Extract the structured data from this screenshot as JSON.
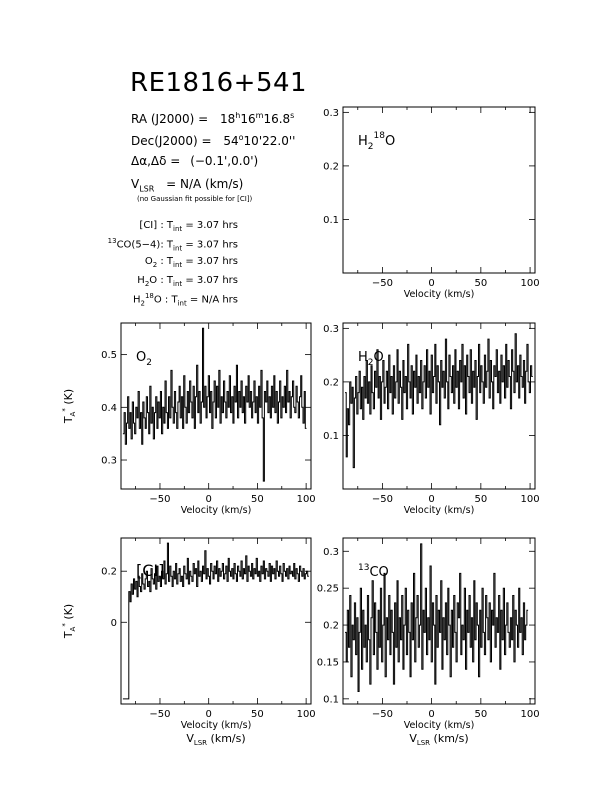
{
  "title": "RE1816+541",
  "info": {
    "ra_label": "RA (J2000)  =",
    "ra_value": {
      "h": "18",
      "m": "16",
      "s": "16.8"
    },
    "dec_label": "Dec(J2000)  =",
    "dec_value": {
      "d": "54",
      "rest": "10'22.0''"
    },
    "offset_label": "Δα,Δδ  =",
    "offset_value": "(−0.1',0.0')",
    "vlsr_label": "V",
    "vlsr_sub": "LSR",
    "vlsr_value": "=  N/A  (km/s)",
    "note": "(no Gaussian fit possible for [CI])"
  },
  "integration_times": [
    {
      "line": "[CI]",
      "sup": "",
      "sub": "",
      "value": "3.07 hrs"
    },
    {
      "line": "CO(5−4)",
      "sup": "13",
      "sub": "",
      "value": "3.07 hrs"
    },
    {
      "line": "O",
      "sup": "",
      "sub": "2",
      "value": "3.07 hrs"
    },
    {
      "line": "H",
      "sup": "",
      "sub": "2",
      "line_rest": "O",
      "value": "3.07 hrs"
    },
    {
      "line": "H",
      "sup": "18",
      "sub": "2",
      "line_rest": "O",
      "value": "N/A hrs"
    }
  ],
  "tint_label": "T",
  "tint_sub": "int",
  "axis_labels": {
    "velocity": "Velocity (km/s)",
    "vlsr": "V",
    "vlsr_sub": "LSR",
    "vlsr_units": "(km/s)",
    "ta": "T",
    "ta_sub": "A",
    "ta_sup": "*",
    "ta_units": "(K)"
  },
  "chart_data": [
    {
      "id": "h2_18o",
      "type": "line",
      "label_parts": [
        "H",
        "2",
        "18",
        "O"
      ],
      "xlim": [
        -90,
        105
      ],
      "ylim": [
        0.0,
        0.31
      ],
      "xticks": [
        -50,
        0,
        50,
        100
      ],
      "yticks": [
        0.1,
        0.2,
        0.3
      ],
      "ytick_labels": [
        "0.1",
        "0.2",
        "0.3"
      ],
      "series": []
    },
    {
      "id": "o2",
      "type": "line",
      "label_parts": [
        "O",
        "2"
      ],
      "xlim": [
        -90,
        105
      ],
      "ylim": [
        0.245,
        0.56
      ],
      "xticks": [
        -50,
        0,
        50,
        100
      ],
      "yticks": [
        0.3,
        0.4,
        0.5
      ],
      "ytick_labels": [
        "0.3",
        "0.4",
        "0.5"
      ],
      "series": [
        {
          "x_start": -88,
          "x_step": 1.2,
          "y": [
            0.35,
            0.39,
            0.33,
            0.37,
            0.42,
            0.36,
            0.39,
            0.34,
            0.41,
            0.37,
            0.35,
            0.4,
            0.38,
            0.43,
            0.36,
            0.39,
            0.33,
            0.41,
            0.38,
            0.36,
            0.42,
            0.39,
            0.35,
            0.44,
            0.37,
            0.4,
            0.34,
            0.39,
            0.42,
            0.36,
            0.41,
            0.38,
            0.43,
            0.35,
            0.4,
            0.37,
            0.45,
            0.39,
            0.36,
            0.42,
            0.38,
            0.47,
            0.4,
            0.37,
            0.43,
            0.39,
            0.36,
            0.41,
            0.44,
            0.38,
            0.42,
            0.36,
            0.46,
            0.4,
            0.37,
            0.43,
            0.39,
            0.45,
            0.41,
            0.38,
            0.44,
            0.36,
            0.42,
            0.48,
            0.39,
            0.43,
            0.37,
            0.41,
            0.55,
            0.4,
            0.44,
            0.38,
            0.42,
            0.46,
            0.39,
            0.43,
            0.36,
            0.41,
            0.45,
            0.38,
            0.44,
            0.4,
            0.47,
            0.37,
            0.42,
            0.39,
            0.45,
            0.41,
            0.38,
            0.43,
            0.4,
            0.46,
            0.39,
            0.42,
            0.37,
            0.44,
            0.41,
            0.48,
            0.38,
            0.43,
            0.4,
            0.45,
            0.39,
            0.42,
            0.37,
            0.44,
            0.41,
            0.46,
            0.4,
            0.43,
            0.38,
            0.41,
            0.45,
            0.39,
            0.42,
            0.37,
            0.44,
            0.4,
            0.47,
            0.38,
            0.26,
            0.43,
            0.41,
            0.45,
            0.39,
            0.42,
            0.38,
            0.44,
            0.4,
            0.46,
            0.39,
            0.43,
            0.37,
            0.41,
            0.45,
            0.38,
            0.42,
            0.4,
            0.44,
            0.39,
            0.47,
            0.41,
            0.43,
            0.38,
            0.42,
            0.45,
            0.4,
            0.39,
            0.44,
            0.41,
            0.38,
            0.42,
            0.46,
            0.4,
            0.37,
            0.43,
            0.36
          ]
        }
      ]
    },
    {
      "id": "h2o",
      "type": "line",
      "label_parts": [
        "H",
        "2",
        "",
        "O"
      ],
      "xlim": [
        -90,
        105
      ],
      "ylim": [
        0.0,
        0.31
      ],
      "xticks": [
        -50,
        0,
        50,
        100
      ],
      "yticks": [
        0.1,
        0.2,
        0.3
      ],
      "ytick_labels": [
        "0.1",
        "0.2",
        "0.3"
      ],
      "series": [
        {
          "x_start": -88,
          "x_step": 1.2,
          "y": [
            0.18,
            0.06,
            0.15,
            0.12,
            0.2,
            0.16,
            0.19,
            0.04,
            0.17,
            0.21,
            0.14,
            0.18,
            0.22,
            0.15,
            0.19,
            0.13,
            0.21,
            0.17,
            0.24,
            0.16,
            0.2,
            0.14,
            0.23,
            0.18,
            0.15,
            0.22,
            0.19,
            0.26,
            0.17,
            0.21,
            0.13,
            0.2,
            0.24,
            0.16,
            0.19,
            0.22,
            0.15,
            0.25,
            0.18,
            0.21,
            0.14,
            0.23,
            0.17,
            0.2,
            0.26,
            0.16,
            0.22,
            0.19,
            0.13,
            0.24,
            0.18,
            0.21,
            0.15,
            0.27,
            0.2,
            0.17,
            0.23,
            0.14,
            0.22,
            0.19,
            0.25,
            0.16,
            0.21,
            0.18,
            0.24,
            0.15,
            0.2,
            0.23,
            0.17,
            0.26,
            0.19,
            0.22,
            0.14,
            0.25,
            0.18,
            0.21,
            0.27,
            0.16,
            0.23,
            0.2,
            0.12,
            0.24,
            0.19,
            0.22,
            0.17,
            0.28,
            0.2,
            0.15,
            0.25,
            0.21,
            0.18,
            0.23,
            0.16,
            0.26,
            0.19,
            0.22,
            0.15,
            0.24,
            0.2,
            0.27,
            0.17,
            0.23,
            0.14,
            0.25,
            0.21,
            0.18,
            0.26,
            0.16,
            0.22,
            0.19,
            0.24,
            0.13,
            0.21,
            0.27,
            0.18,
            0.23,
            0.2,
            0.16,
            0.25,
            0.19,
            0.22,
            0.28,
            0.17,
            0.24,
            0.2,
            0.15,
            0.23,
            0.21,
            0.26,
            0.18,
            0.22,
            0.16,
            0.25,
            0.2,
            0.23,
            0.17,
            0.27,
            0.19,
            0.24,
            0.21,
            0.15,
            0.26,
            0.22,
            0.18,
            0.29,
            0.2,
            0.23,
            0.17,
            0.25,
            0.21,
            0.19,
            0.24,
            0.16,
            0.22,
            0.27,
            0.2,
            0.18,
            0.23,
            0.21
          ]
        }
      ]
    },
    {
      "id": "ci",
      "type": "line",
      "label_parts": [
        "[CI]"
      ],
      "xlim": [
        -90,
        105
      ],
      "ylim": [
        -0.32,
        0.33
      ],
      "xticks": [
        -50,
        0,
        50,
        100
      ],
      "yticks": [
        0.0,
        0.2
      ],
      "ytick_labels": [
        "0",
        "0.2"
      ],
      "series": [
        {
          "x_start": -88,
          "x_step": 1.2,
          "y": [
            -0.3,
            -0.3,
            -0.3,
            -0.3,
            -0.3,
            0.12,
            0.08,
            0.15,
            0.11,
            0.17,
            0.13,
            0.16,
            0.1,
            0.18,
            0.14,
            0.12,
            0.19,
            0.15,
            0.13,
            0.17,
            0.2,
            0.14,
            0.16,
            0.12,
            0.21,
            0.17,
            0.15,
            0.19,
            0.13,
            0.22,
            0.16,
            0.18,
            0.14,
            0.2,
            0.17,
            0.24,
            0.15,
            0.19,
            0.31,
            0.16,
            0.22,
            0.18,
            0.14,
            0.2,
            0.17,
            0.23,
            0.15,
            0.19,
            0.21,
            0.16,
            0.18,
            0.14,
            0.22,
            0.19,
            0.17,
            0.25,
            0.15,
            0.2,
            0.18,
            0.16,
            0.23,
            0.19,
            0.21,
            0.14,
            0.24,
            0.18,
            0.2,
            0.16,
            0.22,
            0.19,
            0.28,
            0.17,
            0.21,
            0.18,
            0.15,
            0.23,
            0.2,
            0.17,
            0.22,
            0.19,
            0.24,
            0.16,
            0.21,
            0.18,
            0.2,
            0.23,
            0.17,
            0.19,
            0.22,
            0.16,
            0.25,
            0.2,
            0.18,
            0.21,
            0.17,
            0.23,
            0.19,
            0.16,
            0.22,
            0.2,
            0.18,
            0.24,
            0.17,
            0.21,
            0.19,
            0.26,
            0.16,
            0.22,
            0.2,
            0.18,
            0.23,
            0.17,
            0.21,
            0.19,
            0.25,
            0.18,
            0.2,
            0.16,
            0.22,
            0.19,
            0.24,
            0.17,
            0.21,
            0.2,
            0.18,
            0.23,
            0.16,
            0.22,
            0.19,
            0.21,
            0.17,
            0.24,
            0.2,
            0.18,
            0.22,
            0.19,
            0.16,
            0.23,
            0.2,
            0.18,
            0.21,
            0.17,
            0.22,
            0.19,
            0.2,
            0.18,
            0.23,
            0.17,
            0.21,
            0.19,
            0.16,
            0.22,
            0.2,
            0.18,
            0.21,
            0.17,
            0.19,
            0.2,
            0.18
          ]
        }
      ]
    },
    {
      "id": "13co",
      "type": "line",
      "label_parts": [
        "13",
        "CO"
      ],
      "xlim": [
        -90,
        105
      ],
      "ylim": [
        0.093,
        0.318
      ],
      "xticks": [
        -50,
        0,
        50,
        100
      ],
      "yticks": [
        0.1,
        0.15,
        0.2,
        0.25,
        0.3
      ],
      "ytick_labels": [
        "0.1",
        "0.15",
        "0.2",
        "0.25",
        "0.3"
      ],
      "series": [
        {
          "x_start": -88,
          "x_step": 1.2,
          "y": [
            0.19,
            0.15,
            0.22,
            0.17,
            0.24,
            0.13,
            0.2,
            0.18,
            0.23,
            0.16,
            0.21,
            0.11,
            0.19,
            0.25,
            0.14,
            0.22,
            0.17,
            0.2,
            0.15,
            0.24,
            0.18,
            0.12,
            0.21,
            0.26,
            0.16,
            0.23,
            0.19,
            0.14,
            0.22,
            0.17,
            0.25,
            0.15,
            0.2,
            0.27,
            0.13,
            0.21,
            0.18,
            0.24,
            0.16,
            0.22,
            0.19,
            0.12,
            0.23,
            0.17,
            0.26,
            0.15,
            0.21,
            0.18,
            0.24,
            0.14,
            0.2,
            0.25,
            0.16,
            0.22,
            0.19,
            0.13,
            0.23,
            0.18,
            0.27,
            0.15,
            0.21,
            0.24,
            0.17,
            0.2,
            0.31,
            0.14,
            0.22,
            0.19,
            0.25,
            0.16,
            0.21,
            0.18,
            0.28,
            0.15,
            0.23,
            0.2,
            0.12,
            0.24,
            0.17,
            0.22,
            0.19,
            0.26,
            0.14,
            0.21,
            0.18,
            0.23,
            0.16,
            0.25,
            0.2,
            0.13,
            0.22,
            0.17,
            0.24,
            0.19,
            0.15,
            0.23,
            0.21,
            0.27,
            0.16,
            0.2,
            0.18,
            0.25,
            0.14,
            0.22,
            0.19,
            0.24,
            0.17,
            0.21,
            0.15,
            0.26,
            0.18,
            0.23,
            0.2,
            0.13,
            0.22,
            0.17,
            0.25,
            0.19,
            0.16,
            0.24,
            0.21,
            0.18,
            0.23,
            0.15,
            0.22,
            0.2,
            0.27,
            0.17,
            0.21,
            0.19,
            0.24,
            0.14,
            0.22,
            0.18,
            0.25,
            0.16,
            0.2,
            0.23,
            0.19,
            0.17,
            0.21,
            0.18,
            0.24,
            0.15,
            0.22,
            0.2,
            0.17,
            0.25,
            0.19,
            0.21,
            0.16,
            0.23,
            0.18,
            0.2,
            0.22
          ]
        }
      ]
    }
  ]
}
